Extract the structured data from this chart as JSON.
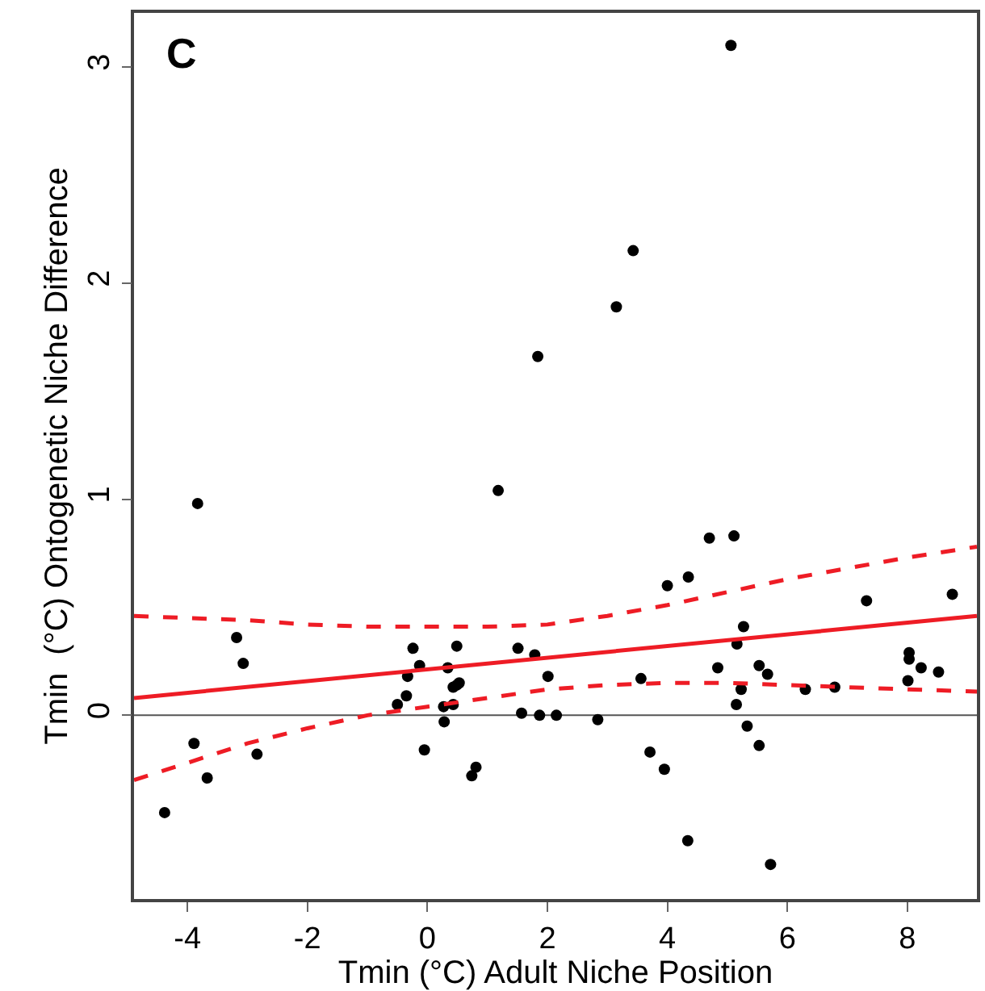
{
  "chart_data": {
    "type": "scatter",
    "xlabel": "Tmin (°C) Adult Niche Position",
    "ylabel": "Tmin  (°C) Ontogenetic Niche Difference",
    "annotations": [
      "C"
    ],
    "xlim": [
      -4.89,
      9.16
    ],
    "ylim": [
      -0.85,
      3.25
    ],
    "xticks": [
      -4,
      -2,
      0,
      2,
      4,
      6,
      8
    ],
    "yticks": [
      0,
      1,
      2,
      3
    ],
    "grid": false,
    "ref_lines": [
      {
        "axis": "y",
        "value": 0,
        "color": "#555555"
      }
    ],
    "series": [
      {
        "color": "#000000",
        "marker": "circle",
        "x": [
          -4.38,
          -3.83,
          -3.89,
          -3.67,
          -3.18,
          -3.07,
          -2.84,
          -0.5,
          -0.35,
          -0.33,
          -0.24,
          -0.13,
          -0.05,
          0.27,
          0.28,
          0.34,
          0.43,
          0.43,
          0.49,
          0.49,
          0.53,
          0.74,
          0.81,
          1.18,
          1.51,
          1.57,
          1.79,
          1.87,
          2.01,
          2.15,
          1.84,
          5.06,
          3.43,
          3.15,
          2.84,
          3.56,
          3.71,
          3.95,
          4.0,
          4.35,
          4.34,
          4.7,
          4.84,
          5.11,
          5.16,
          5.27,
          5.23,
          5.15,
          5.33,
          5.53,
          5.67,
          5.53,
          5.72,
          6.3,
          6.79,
          7.32,
          8.03,
          8.03,
          8.01,
          8.23,
          8.52,
          8.75
        ],
        "values": [
          -0.45,
          0.98,
          -0.13,
          -0.29,
          0.36,
          0.24,
          -0.18,
          0.05,
          0.09,
          0.18,
          0.31,
          0.23,
          -0.16,
          0.04,
          -0.03,
          0.22,
          0.13,
          0.05,
          0.32,
          0.14,
          0.15,
          -0.28,
          -0.24,
          1.04,
          0.31,
          0.01,
          0.28,
          0.0,
          0.18,
          0.0,
          1.66,
          3.1,
          2.15,
          1.89,
          -0.02,
          0.17,
          -0.17,
          -0.25,
          0.6,
          0.64,
          -0.58,
          0.82,
          0.22,
          0.83,
          0.33,
          0.41,
          0.12,
          0.05,
          -0.05,
          0.23,
          0.19,
          -0.14,
          -0.69,
          0.12,
          0.13,
          0.53,
          0.29,
          0.26,
          0.16,
          0.22,
          0.2,
          0.56
        ]
      },
      {
        "type": "line",
        "color": "#ee1c25",
        "line_style": "solid",
        "x": [
          -4.89,
          9.16
        ],
        "values": [
          0.08,
          0.46
        ]
      },
      {
        "type": "line",
        "color": "#ee1c25",
        "line_style": "dashed",
        "x": [
          -4.89,
          -4,
          -3,
          -2,
          -1,
          0,
          1,
          2,
          3,
          4,
          5,
          6,
          7,
          8,
          9.16
        ],
        "values": [
          0.46,
          0.45,
          0.44,
          0.42,
          0.41,
          0.41,
          0.41,
          0.42,
          0.46,
          0.51,
          0.57,
          0.63,
          0.68,
          0.73,
          0.78
        ]
      },
      {
        "type": "line",
        "color": "#ee1c25",
        "line_style": "dashed",
        "x": [
          -4.89,
          -4,
          -3,
          -2,
          -1,
          0,
          1,
          2,
          3,
          4,
          5,
          6,
          7,
          8,
          9.16
        ],
        "values": [
          -0.3,
          -0.22,
          -0.13,
          -0.06,
          0.0,
          0.04,
          0.08,
          0.12,
          0.14,
          0.15,
          0.15,
          0.14,
          0.13,
          0.12,
          0.11
        ]
      }
    ]
  }
}
